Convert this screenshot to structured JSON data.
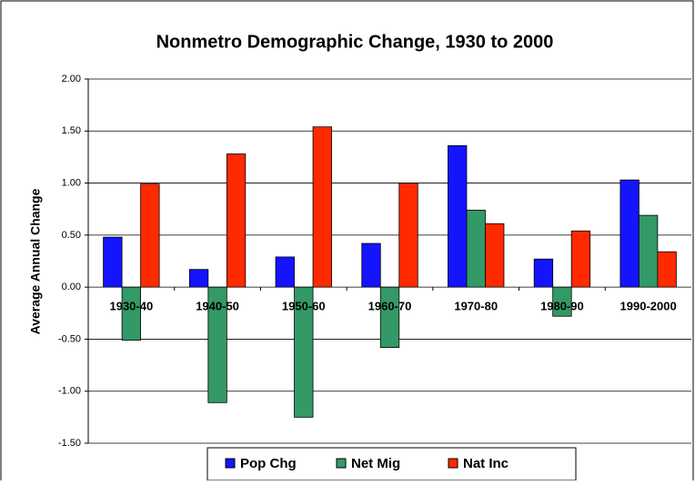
{
  "chart_data": {
    "type": "bar",
    "title": "Nonmetro Demographic Change, 1930 to 2000",
    "y_label": "Average Annual Change",
    "categories": [
      "1930-40",
      "1940-50",
      "1950-60",
      "1960-70",
      "1970-80",
      "1980-90",
      "1990-2000"
    ],
    "series": [
      {
        "name": "Pop Chg",
        "color": "#1414ff",
        "values": [
          0.48,
          0.17,
          0.29,
          0.42,
          1.36,
          0.27,
          1.03
        ]
      },
      {
        "name": "Net Mig",
        "color": "#339966",
        "values": [
          -0.51,
          -1.11,
          -1.25,
          -0.58,
          0.74,
          -0.28,
          0.69
        ]
      },
      {
        "name": "Nat Inc",
        "color": "#ff2a00",
        "values": [
          0.99,
          1.28,
          1.54,
          1.0,
          0.61,
          0.54,
          0.34
        ]
      }
    ],
    "ylim": [
      -1.5,
      2
    ],
    "yticks": [
      {
        "value": -1.5,
        "label": "-1.50"
      },
      {
        "value": -1,
        "label": "-1.00"
      },
      {
        "value": -0.5,
        "label": "-0.50"
      },
      {
        "value": 0,
        "label": "0.00"
      },
      {
        "value": 0.5,
        "label": "0.50"
      },
      {
        "value": 1,
        "label": "1.00"
      },
      {
        "value": 1.5,
        "label": "1.50"
      },
      {
        "value": 2,
        "label": "2.00"
      }
    ],
    "grid": true,
    "legend": "bottom"
  }
}
